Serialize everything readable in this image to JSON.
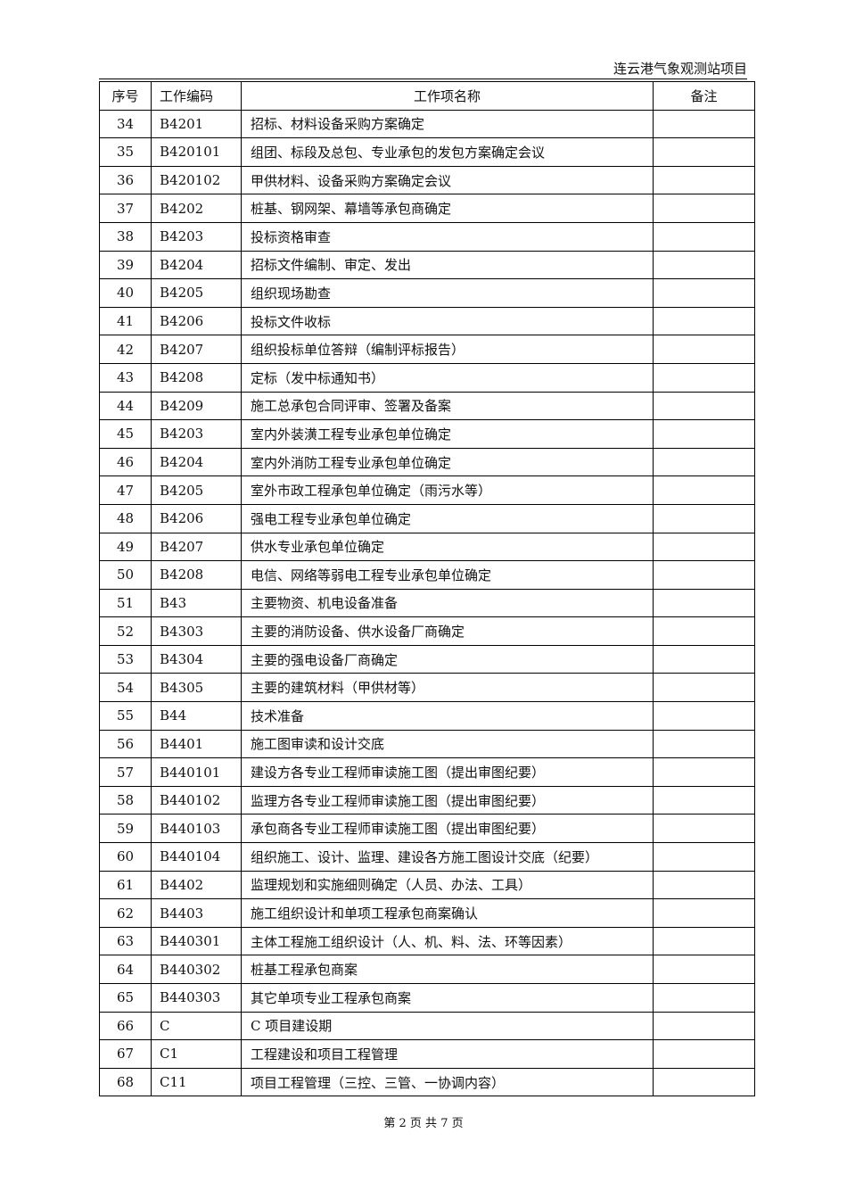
{
  "header": {
    "project": "连云港气象观测站项目"
  },
  "table": {
    "columns": [
      "序号",
      "工作编码",
      "工作项名称",
      "备注"
    ],
    "rows": [
      [
        "34",
        "B4201",
        "招标、材料设备采购方案确定",
        ""
      ],
      [
        "35",
        "B420101",
        "组团、标段及总包、专业承包的发包方案确定会议",
        ""
      ],
      [
        "36",
        "B420102",
        "甲供材料、设备采购方案确定会议",
        ""
      ],
      [
        "37",
        "B4202",
        "桩基、钢网架、幕墙等承包商确定",
        ""
      ],
      [
        "38",
        "B4203",
        "投标资格审查",
        ""
      ],
      [
        "39",
        "B4204",
        "招标文件编制、审定、发出",
        ""
      ],
      [
        "40",
        "B4205",
        "组织现场勘查",
        ""
      ],
      [
        "41",
        "B4206",
        "投标文件收标",
        ""
      ],
      [
        "42",
        "B4207",
        "组织投标单位答辩（编制评标报告）",
        ""
      ],
      [
        "43",
        "B4208",
        "定标（发中标通知书）",
        ""
      ],
      [
        "44",
        "B4209",
        "施工总承包合同评审、签署及备案",
        ""
      ],
      [
        "45",
        "B4203",
        "室内外装潢工程专业承包单位确定",
        ""
      ],
      [
        "46",
        "B4204",
        "室内外消防工程专业承包单位确定",
        ""
      ],
      [
        "47",
        "B4205",
        "室外市政工程承包单位确定（雨污水等）",
        ""
      ],
      [
        "48",
        "B4206",
        "强电工程专业承包单位确定",
        ""
      ],
      [
        "49",
        "B4207",
        "供水专业承包单位确定",
        ""
      ],
      [
        "50",
        "B4208",
        "电信、网络等弱电工程专业承包单位确定",
        ""
      ],
      [
        "51",
        "B43",
        "主要物资、机电设备准备",
        ""
      ],
      [
        "52",
        "B4303",
        "主要的消防设备、供水设备厂商确定",
        ""
      ],
      [
        "53",
        "B4304",
        "主要的强电设备厂商确定",
        ""
      ],
      [
        "54",
        "B4305",
        "主要的建筑材料（甲供材等）",
        ""
      ],
      [
        "55",
        "B44",
        "技术准备",
        ""
      ],
      [
        "56",
        "B4401",
        "施工图审读和设计交底",
        ""
      ],
      [
        "57",
        "B440101",
        "建设方各专业工程师审读施工图（提出审图纪要）",
        ""
      ],
      [
        "58",
        "B440102",
        "监理方各专业工程师审读施工图（提出审图纪要）",
        ""
      ],
      [
        "59",
        "B440103",
        "承包商各专业工程师审读施工图（提出审图纪要）",
        ""
      ],
      [
        "60",
        "B440104",
        "组织施工、设计、监理、建设各方施工图设计交底（纪要）",
        ""
      ],
      [
        "61",
        "B4402",
        "监理规划和实施细则确定（人员、办法、工具）",
        ""
      ],
      [
        "62",
        "B4403",
        "施工组织设计和单项工程承包商案确认",
        ""
      ],
      [
        "63",
        "B440301",
        "主体工程施工组织设计（人、机、料、法、环等因素）",
        ""
      ],
      [
        "64",
        "B440302",
        "桩基工程承包商案",
        ""
      ],
      [
        "65",
        "B440303",
        "其它单项专业工程承包商案",
        ""
      ],
      [
        "66",
        "C",
        "C 项目建设期",
        ""
      ],
      [
        "67",
        "C1",
        "工程建设和项目工程管理",
        ""
      ],
      [
        "68",
        "C11",
        "项目工程管理（三控、三管、一协调内容）",
        ""
      ]
    ]
  },
  "footer": {
    "page_info": "第 2 页 共 7 页"
  }
}
